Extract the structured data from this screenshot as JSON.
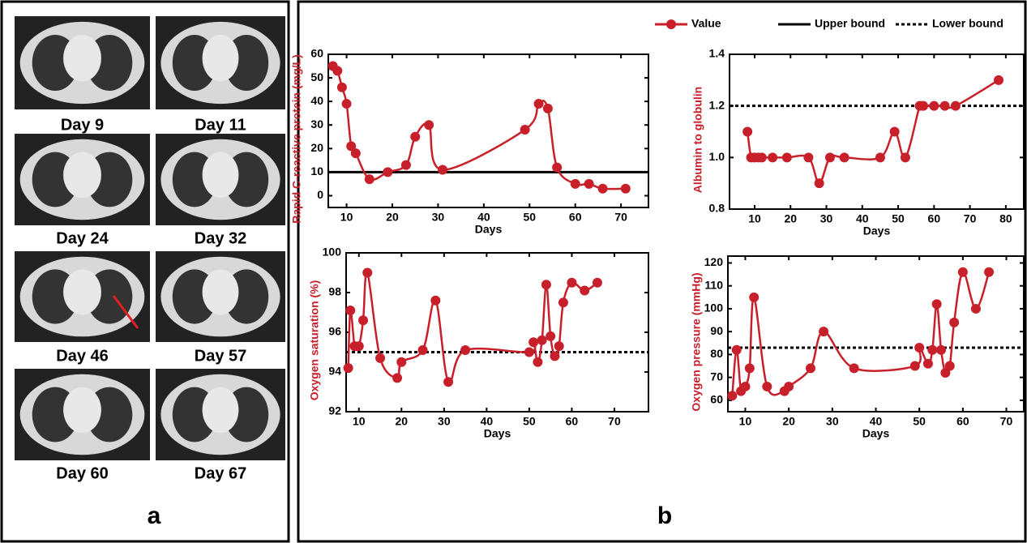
{
  "panel_a": {
    "images": [
      "Day 9",
      "Day 11",
      "Day 24",
      "Day 32",
      "Day 46",
      "Day 57",
      "Day 60",
      "Day 67"
    ],
    "label": "a"
  },
  "panel_b": {
    "label": "b"
  },
  "legend": {
    "entries": [
      {
        "name": "Value",
        "color": "#c8202a",
        "style": "marker"
      },
      {
        "name": "Upper bound",
        "color": "#000000",
        "style": "solid"
      },
      {
        "name": "Lower bound",
        "color": "#000000",
        "style": "dotted"
      }
    ]
  },
  "chart_data": [
    {
      "type": "line",
      "xlabel": "Days",
      "ylabel": "Rapid C-reactive protein (mg/L)",
      "xlim": [
        6,
        76
      ],
      "xticks": [
        10,
        20,
        30,
        40,
        50,
        60,
        70
      ],
      "ylim": [
        -5,
        60
      ],
      "yticks": [
        0,
        10,
        20,
        30,
        40,
        50,
        60
      ],
      "series": [
        {
          "color": "#c8202a",
          "x": [
            7,
            8,
            9,
            10,
            11,
            12,
            15,
            19,
            23,
            25,
            28,
            31,
            49,
            52,
            54,
            56,
            60,
            63,
            66,
            71
          ],
          "values": [
            55,
            53,
            46,
            39,
            21,
            18,
            7,
            10,
            13,
            25,
            30,
            11,
            28,
            39,
            37,
            12,
            5,
            5,
            3,
            3
          ]
        }
      ],
      "reference_line": {
        "value": 10,
        "style": "solid",
        "color": "#000000"
      }
    },
    {
      "type": "line",
      "xlabel": "Days",
      "ylabel": "Albumin to globulin",
      "xlim": [
        3,
        85
      ],
      "xticks": [
        10,
        20,
        30,
        40,
        50,
        60,
        70,
        80
      ],
      "ylim": [
        0.8,
        1.4
      ],
      "yticks": [
        {
          "value": 0.8,
          "label": "0.8"
        },
        {
          "value": 1.0,
          "label": "1.0"
        },
        {
          "value": 1.2,
          "label": "1.2"
        },
        {
          "value": 1.4,
          "label": "1.4"
        }
      ],
      "series": [
        {
          "color": "#c8202a",
          "x": [
            8,
            9,
            10,
            11,
            12,
            15,
            19,
            25,
            28,
            31,
            35,
            45,
            49,
            52,
            56,
            57,
            60,
            63,
            66,
            78
          ],
          "values": [
            1.1,
            1.0,
            1.0,
            1.0,
            1.0,
            1.0,
            1.0,
            1.0,
            0.9,
            1.0,
            1.0,
            1.0,
            1.1,
            1.0,
            1.2,
            1.2,
            1.2,
            1.2,
            1.2,
            1.3
          ]
        }
      ],
      "reference_line": {
        "value": 1.2,
        "style": "dotted",
        "color": "#000000"
      }
    },
    {
      "type": "line",
      "xlabel": "Days",
      "ylabel": "Oxygen saturation (%)",
      "xlim": [
        7,
        78
      ],
      "xticks": [
        10,
        20,
        30,
        40,
        50,
        60,
        70
      ],
      "ylim": [
        92,
        100
      ],
      "yticks": [
        92,
        94,
        96,
        98,
        100
      ],
      "series": [
        {
          "color": "#c8202a",
          "x": [
            7.5,
            8,
            9,
            10,
            11,
            12,
            15,
            19,
            20,
            25,
            28,
            31,
            35,
            50,
            51,
            52,
            53,
            54,
            55,
            56,
            57,
            58,
            60,
            63,
            66
          ],
          "values": [
            94.2,
            97.1,
            95.3,
            95.3,
            96.6,
            99,
            94.7,
            93.7,
            94.5,
            95.1,
            97.6,
            93.5,
            95.1,
            95,
            95.5,
            94.5,
            95.6,
            98.4,
            95.8,
            94.8,
            95.3,
            97.5,
            98.5,
            98.1,
            98.5
          ]
        }
      ],
      "reference_line": {
        "value": 95,
        "style": "dotted",
        "color": "#000000"
      }
    },
    {
      "type": "line",
      "xlabel": "Days",
      "ylabel": "Oxygen pressure (mmHg)",
      "xlim": [
        6,
        74
      ],
      "xticks": [
        10,
        20,
        30,
        40,
        50,
        60,
        70
      ],
      "ylim": [
        55,
        123
      ],
      "yticks": [
        60,
        70,
        80,
        90,
        100,
        110,
        120
      ],
      "series": [
        {
          "color": "#c8202a",
          "x": [
            7,
            8,
            9,
            10,
            11,
            12,
            15,
            19,
            20,
            25,
            28,
            35,
            49,
            50,
            52,
            53,
            54,
            55,
            56,
            57,
            58,
            60,
            63,
            66
          ],
          "values": [
            62,
            82,
            64,
            66,
            74,
            105,
            66,
            64,
            66,
            74,
            90,
            74,
            75,
            83,
            76,
            82,
            102,
            82,
            72,
            75,
            94,
            116,
            100,
            116
          ]
        }
      ],
      "reference_line": {
        "value": 83,
        "style": "dotted",
        "color": "#000000"
      }
    }
  ]
}
